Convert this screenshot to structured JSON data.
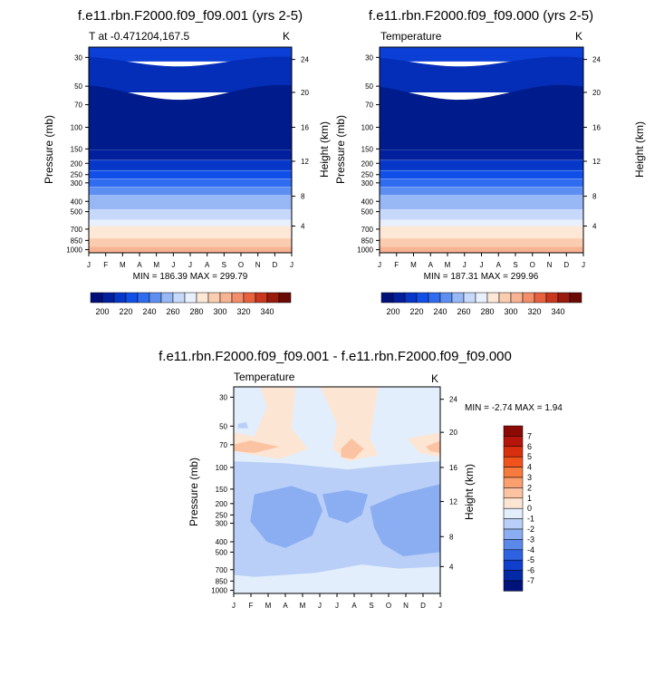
{
  "chart_data": [
    {
      "type": "heatmap",
      "title": "f.e11.rbn.F2000.f09_f09.001 (yrs 2-5)",
      "left_label": "T at -0.471204,167.5",
      "right_label": "K",
      "ylabel": "Pressure (mb)",
      "y2label": "Height (km)",
      "x_ticks": [
        "J",
        "F",
        "M",
        "A",
        "M",
        "J",
        "J",
        "A",
        "S",
        "O",
        "N",
        "D",
        "J"
      ],
      "y_ticks": [
        "30",
        "50",
        "70",
        "100",
        "150",
        "200",
        "250",
        "300",
        "400",
        "500",
        "700",
        "850",
        "1000"
      ],
      "y2_ticks": [
        "24",
        "20",
        "16",
        "12",
        "8",
        "4"
      ],
      "minmax": "MIN = 186.39 MAX = 299.79",
      "colorbar_labels": [
        "200",
        "220",
        "240",
        "260",
        "280",
        "300",
        "320",
        "340"
      ],
      "bands_top_to_bottom": [
        {
          "level": 215,
          "color": "#0b3fd6"
        },
        {
          "level": 205,
          "color": "#052eb8"
        },
        {
          "level": 195,
          "color": "#001c8c"
        },
        {
          "level": 190,
          "color": "#00107a"
        },
        {
          "level": 200,
          "color": "#021f9e"
        },
        {
          "level": 210,
          "color": "#0637c9"
        },
        {
          "level": 220,
          "color": "#1150e8"
        },
        {
          "level": 230,
          "color": "#2f6cf0"
        },
        {
          "level": 240,
          "color": "#5d8ff2"
        },
        {
          "level": 250,
          "color": "#97b7f5"
        },
        {
          "level": 260,
          "color": "#c7d9fb"
        },
        {
          "level": 270,
          "color": "#e8f0fd"
        },
        {
          "level": 280,
          "color": "#fde7d6"
        },
        {
          "level": 290,
          "color": "#fbcdb0"
        },
        {
          "level": 295,
          "color": "#f8b393"
        }
      ]
    },
    {
      "type": "heatmap",
      "title": "f.e11.rbn.F2000.f09_f09.000 (yrs 2-5)",
      "left_label": "Temperature",
      "right_label": "K",
      "ylabel": "Pressure (mb)",
      "y2label": "Height (km)",
      "x_ticks": [
        "J",
        "F",
        "M",
        "A",
        "M",
        "J",
        "J",
        "A",
        "S",
        "O",
        "N",
        "D",
        "J"
      ],
      "y_ticks": [
        "30",
        "50",
        "70",
        "100",
        "150",
        "200",
        "250",
        "300",
        "400",
        "500",
        "700",
        "850",
        "1000"
      ],
      "y2_ticks": [
        "24",
        "20",
        "16",
        "12",
        "8",
        "4"
      ],
      "minmax": "MIN = 187.31 MAX = 299.96",
      "colorbar_labels": [
        "200",
        "220",
        "240",
        "260",
        "280",
        "300",
        "320",
        "340"
      ]
    },
    {
      "type": "heatmap",
      "title": "f.e11.rbn.F2000.f09_f09.001 - f.e11.rbn.F2000.f09_f09.000",
      "left_label": "Temperature",
      "right_label": "K",
      "ylabel": "Pressure (mb)",
      "y2label": "Height (km)",
      "x_ticks": [
        "J",
        "F",
        "M",
        "A",
        "M",
        "J",
        "J",
        "A",
        "S",
        "O",
        "N",
        "D",
        "J"
      ],
      "y_ticks": [
        "30",
        "50",
        "70",
        "100",
        "150",
        "200",
        "250",
        "300",
        "400",
        "500",
        "700",
        "850",
        "1000"
      ],
      "y2_ticks": [
        "24",
        "20",
        "16",
        "12",
        "8",
        "4"
      ],
      "minmax": "MIN =  -2.74 MAX =   1.94",
      "colorbar_labels": [
        "7",
        "6",
        "5",
        "4",
        "3",
        "2",
        "1",
        "0",
        "-1",
        "-2",
        "-3",
        "-4",
        "-5",
        "-6",
        "-7"
      ]
    }
  ],
  "colors": {
    "abs_scale": [
      "#00107a",
      "#021f9e",
      "#0637c9",
      "#1150e8",
      "#2f6cf0",
      "#5d8ff2",
      "#97b7f5",
      "#c7d9fb",
      "#e8f0fd",
      "#fde7d6",
      "#fbcdb0",
      "#f8b393",
      "#f38e6a",
      "#e8623f",
      "#c8371e",
      "#9a1a0c",
      "#6b0a05"
    ],
    "diff_scale": [
      "#8b0a05",
      "#b5150a",
      "#d8300f",
      "#f0541c",
      "#f77a3e",
      "#fa9f6d",
      "#fcc3a2",
      "#fde5d3",
      "#e3eefc",
      "#b9cff7",
      "#8aaef1",
      "#5b89ea",
      "#2e62e0",
      "#0f3fcc",
      "#022aa6",
      "#00137a"
    ]
  }
}
